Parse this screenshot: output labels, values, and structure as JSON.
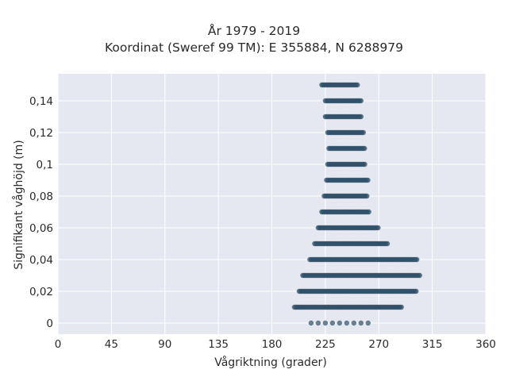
{
  "chart_data": {
    "type": "scatter",
    "title_line1": "År 1979 - 2019",
    "title_line2": "Koordinat (Sweref 99 TM): E 355884, N 6288979",
    "xlabel": "Vågriktning (grader)",
    "ylabel": "Signifikant våghöjd (m)",
    "xlim": [
      0,
      360
    ],
    "ylim": [
      -0.007,
      0.157
    ],
    "xticks": [
      0,
      45,
      90,
      135,
      180,
      225,
      270,
      315,
      360
    ],
    "xtick_labels": [
      "0",
      "45",
      "90",
      "135",
      "180",
      "225",
      "270",
      "315",
      "360"
    ],
    "yticks": [
      0,
      0.02,
      0.04,
      0.06,
      0.08,
      0.1,
      0.12,
      0.14
    ],
    "ytick_labels": [
      "0",
      "0,02",
      "0,04",
      "0,06",
      "0,08",
      "0,1",
      "0,12",
      "0,14"
    ],
    "grid": true,
    "marker_color": "#2f5068",
    "background_color": "#e5e8f0",
    "bands": [
      {
        "y": 0.0,
        "x_min": 213,
        "x_max": 266
      },
      {
        "y": 0.01,
        "x_min": 199,
        "x_max": 289
      },
      {
        "y": 0.02,
        "x_min": 203,
        "x_max": 302
      },
      {
        "y": 0.03,
        "x_min": 206,
        "x_max": 305
      },
      {
        "y": 0.04,
        "x_min": 212,
        "x_max": 302
      },
      {
        "y": 0.05,
        "x_min": 216,
        "x_max": 278
      },
      {
        "y": 0.06,
        "x_min": 219,
        "x_max": 270
      },
      {
        "y": 0.07,
        "x_min": 222,
        "x_max": 262
      },
      {
        "y": 0.08,
        "x_min": 224,
        "x_max": 260
      },
      {
        "y": 0.09,
        "x_min": 226,
        "x_max": 261
      },
      {
        "y": 0.1,
        "x_min": 227,
        "x_max": 259
      },
      {
        "y": 0.11,
        "x_min": 228,
        "x_max": 258
      },
      {
        "y": 0.12,
        "x_min": 227,
        "x_max": 257
      },
      {
        "y": 0.13,
        "x_min": 225,
        "x_max": 256
      },
      {
        "y": 0.14,
        "x_min": 225,
        "x_max": 255
      },
      {
        "y": 0.15,
        "x_min": 222,
        "x_max": 253
      }
    ]
  }
}
